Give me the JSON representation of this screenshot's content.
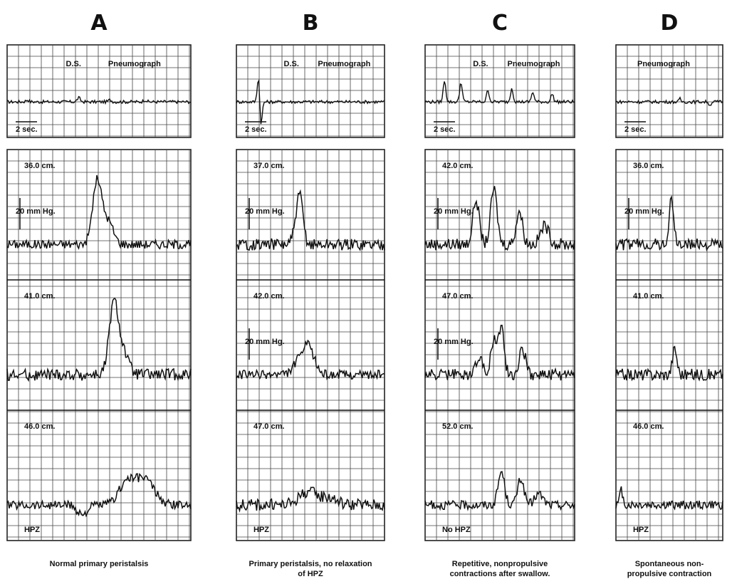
{
  "figure": {
    "panels": [
      {
        "letter": "A",
        "caption": "Normal primary peristalsis",
        "pneumo_labels": [
          "D.S.",
          "Pneumograph"
        ],
        "time_scale": "2 sec.",
        "channels": [
          "36.0 cm.",
          "41.0 cm.",
          "46.0 cm."
        ],
        "pressure_scale": "20 mm Hg.",
        "hpz_label": "HPZ"
      },
      {
        "letter": "B",
        "caption": "Primary peristalsis, no relaxation\nof HPZ",
        "pneumo_labels": [
          "D.S.",
          "Pneumograph"
        ],
        "time_scale": "2 sec.",
        "channels": [
          "37.0 cm.",
          "42.0 cm.",
          "47.0 cm."
        ],
        "pressure_scale": "20 mm Hg.",
        "hpz_label": "HPZ"
      },
      {
        "letter": "C",
        "caption": "Repetitive, nonpropulsive\ncontractions after swallow.",
        "pneumo_labels": [
          "D.S.",
          "Pneumograph"
        ],
        "time_scale": "2 sec.",
        "channels": [
          "42.0 cm.",
          "47.0 cm.",
          "52.0 cm."
        ],
        "pressure_scale": "20 mm Hg.",
        "hpz_label": "No HPZ"
      },
      {
        "letter": "D",
        "caption": "Spontaneous non-\npropulsive contraction",
        "pneumo_labels": [
          "Pneumograph"
        ],
        "time_scale": "2 sec.",
        "channels": [
          "36.0 cm.",
          "41.0 cm.",
          "46.0 cm."
        ],
        "pressure_scale": "20 mm Hg.",
        "hpz_label": "HPZ"
      }
    ]
  },
  "chart_data": {
    "type": "line",
    "description_units": "time in seconds (0-10), pressure in mm Hg relative to baseline",
    "panels": [
      {
        "name": "A",
        "pneumograph": {
          "peaks": [
            [
              1.1,
              2
            ],
            [
              3.9,
              4
            ],
            [
              5.6,
              2
            ],
            [
              7.5,
              2
            ]
          ]
        },
        "channels": [
          {
            "label": "36.0 cm.",
            "peaks": [
              [
                4.9,
                34,
                0.35
              ],
              [
                5.5,
                12,
                0.4
              ]
            ],
            "noise": 3
          },
          {
            "label": "41.0 cm.",
            "peaks": [
              [
                5.8,
                37,
                0.35
              ],
              [
                6.3,
                12,
                0.4
              ]
            ],
            "noise": 4
          },
          {
            "label": "46.0 cm.",
            "peaks": [
              [
                6.5,
                12,
                0.6
              ],
              [
                7.5,
                14,
                0.7
              ],
              [
                4.1,
                -5,
                0.4
              ]
            ],
            "noise": 3
          }
        ]
      },
      {
        "name": "B",
        "pneumograph": {
          "peaks": [
            [
              1.5,
              28
            ],
            [
              1.65,
              -26
            ]
          ]
        },
        "channels": [
          {
            "label": "37.0 cm.",
            "peaks": [
              [
                4.3,
                24,
                0.3
              ],
              [
                4.0,
                6,
                0.3
              ]
            ],
            "noise": 4
          },
          {
            "label": "42.0 cm.",
            "peaks": [
              [
                4.8,
                16,
                0.6
              ],
              [
                4.0,
                4,
                0.4
              ]
            ],
            "noise": 3
          },
          {
            "label": "47.0 cm.",
            "peaks": [
              [
                4.8,
                7,
                0.8
              ],
              [
                6.2,
                4,
                0.8
              ]
            ],
            "noise": 4
          }
        ]
      },
      {
        "name": "C",
        "pneumograph": {
          "peaks": [
            [
              1.3,
              22
            ],
            [
              2.4,
              20
            ],
            [
              4.2,
              12
            ],
            [
              5.8,
              14
            ],
            [
              7.2,
              10
            ],
            [
              8.5,
              8
            ]
          ]
        },
        "channels": [
          {
            "label": "42.0 cm.",
            "peaks": [
              [
                3.4,
                24,
                0.3
              ],
              [
                4.6,
                30,
                0.3
              ],
              [
                6.3,
                18,
                0.3
              ],
              [
                8.0,
                10,
                0.4
              ]
            ],
            "noise": 4
          },
          {
            "label": "47.0 cm.",
            "peaks": [
              [
                3.6,
                10,
                0.3
              ],
              [
                4.6,
                18,
                0.3
              ],
              [
                5.1,
                26,
                0.25
              ],
              [
                6.5,
                14,
                0.3
              ]
            ],
            "noise": 4
          },
          {
            "label": "52.0 cm.",
            "peaks": [
              [
                5.1,
                18,
                0.3
              ],
              [
                6.4,
                14,
                0.3
              ],
              [
                7.6,
                6,
                0.4
              ]
            ],
            "noise": 3
          }
        ]
      },
      {
        "name": "D",
        "pneumograph": {
          "peaks": [
            [
              6.0,
              3
            ],
            [
              8.8,
              -4
            ]
          ]
        },
        "channels": [
          {
            "label": "36.0 cm.",
            "peaks": [
              [
                5.2,
                24,
                0.3
              ]
            ],
            "noise": 4
          },
          {
            "label": "41.0 cm.",
            "peaks": [
              [
                5.5,
                14,
                0.3
              ]
            ],
            "noise": 4
          },
          {
            "label": "46.0 cm.",
            "peaks": [
              [
                0.5,
                8,
                0.2
              ]
            ],
            "noise": 3
          }
        ]
      }
    ]
  }
}
